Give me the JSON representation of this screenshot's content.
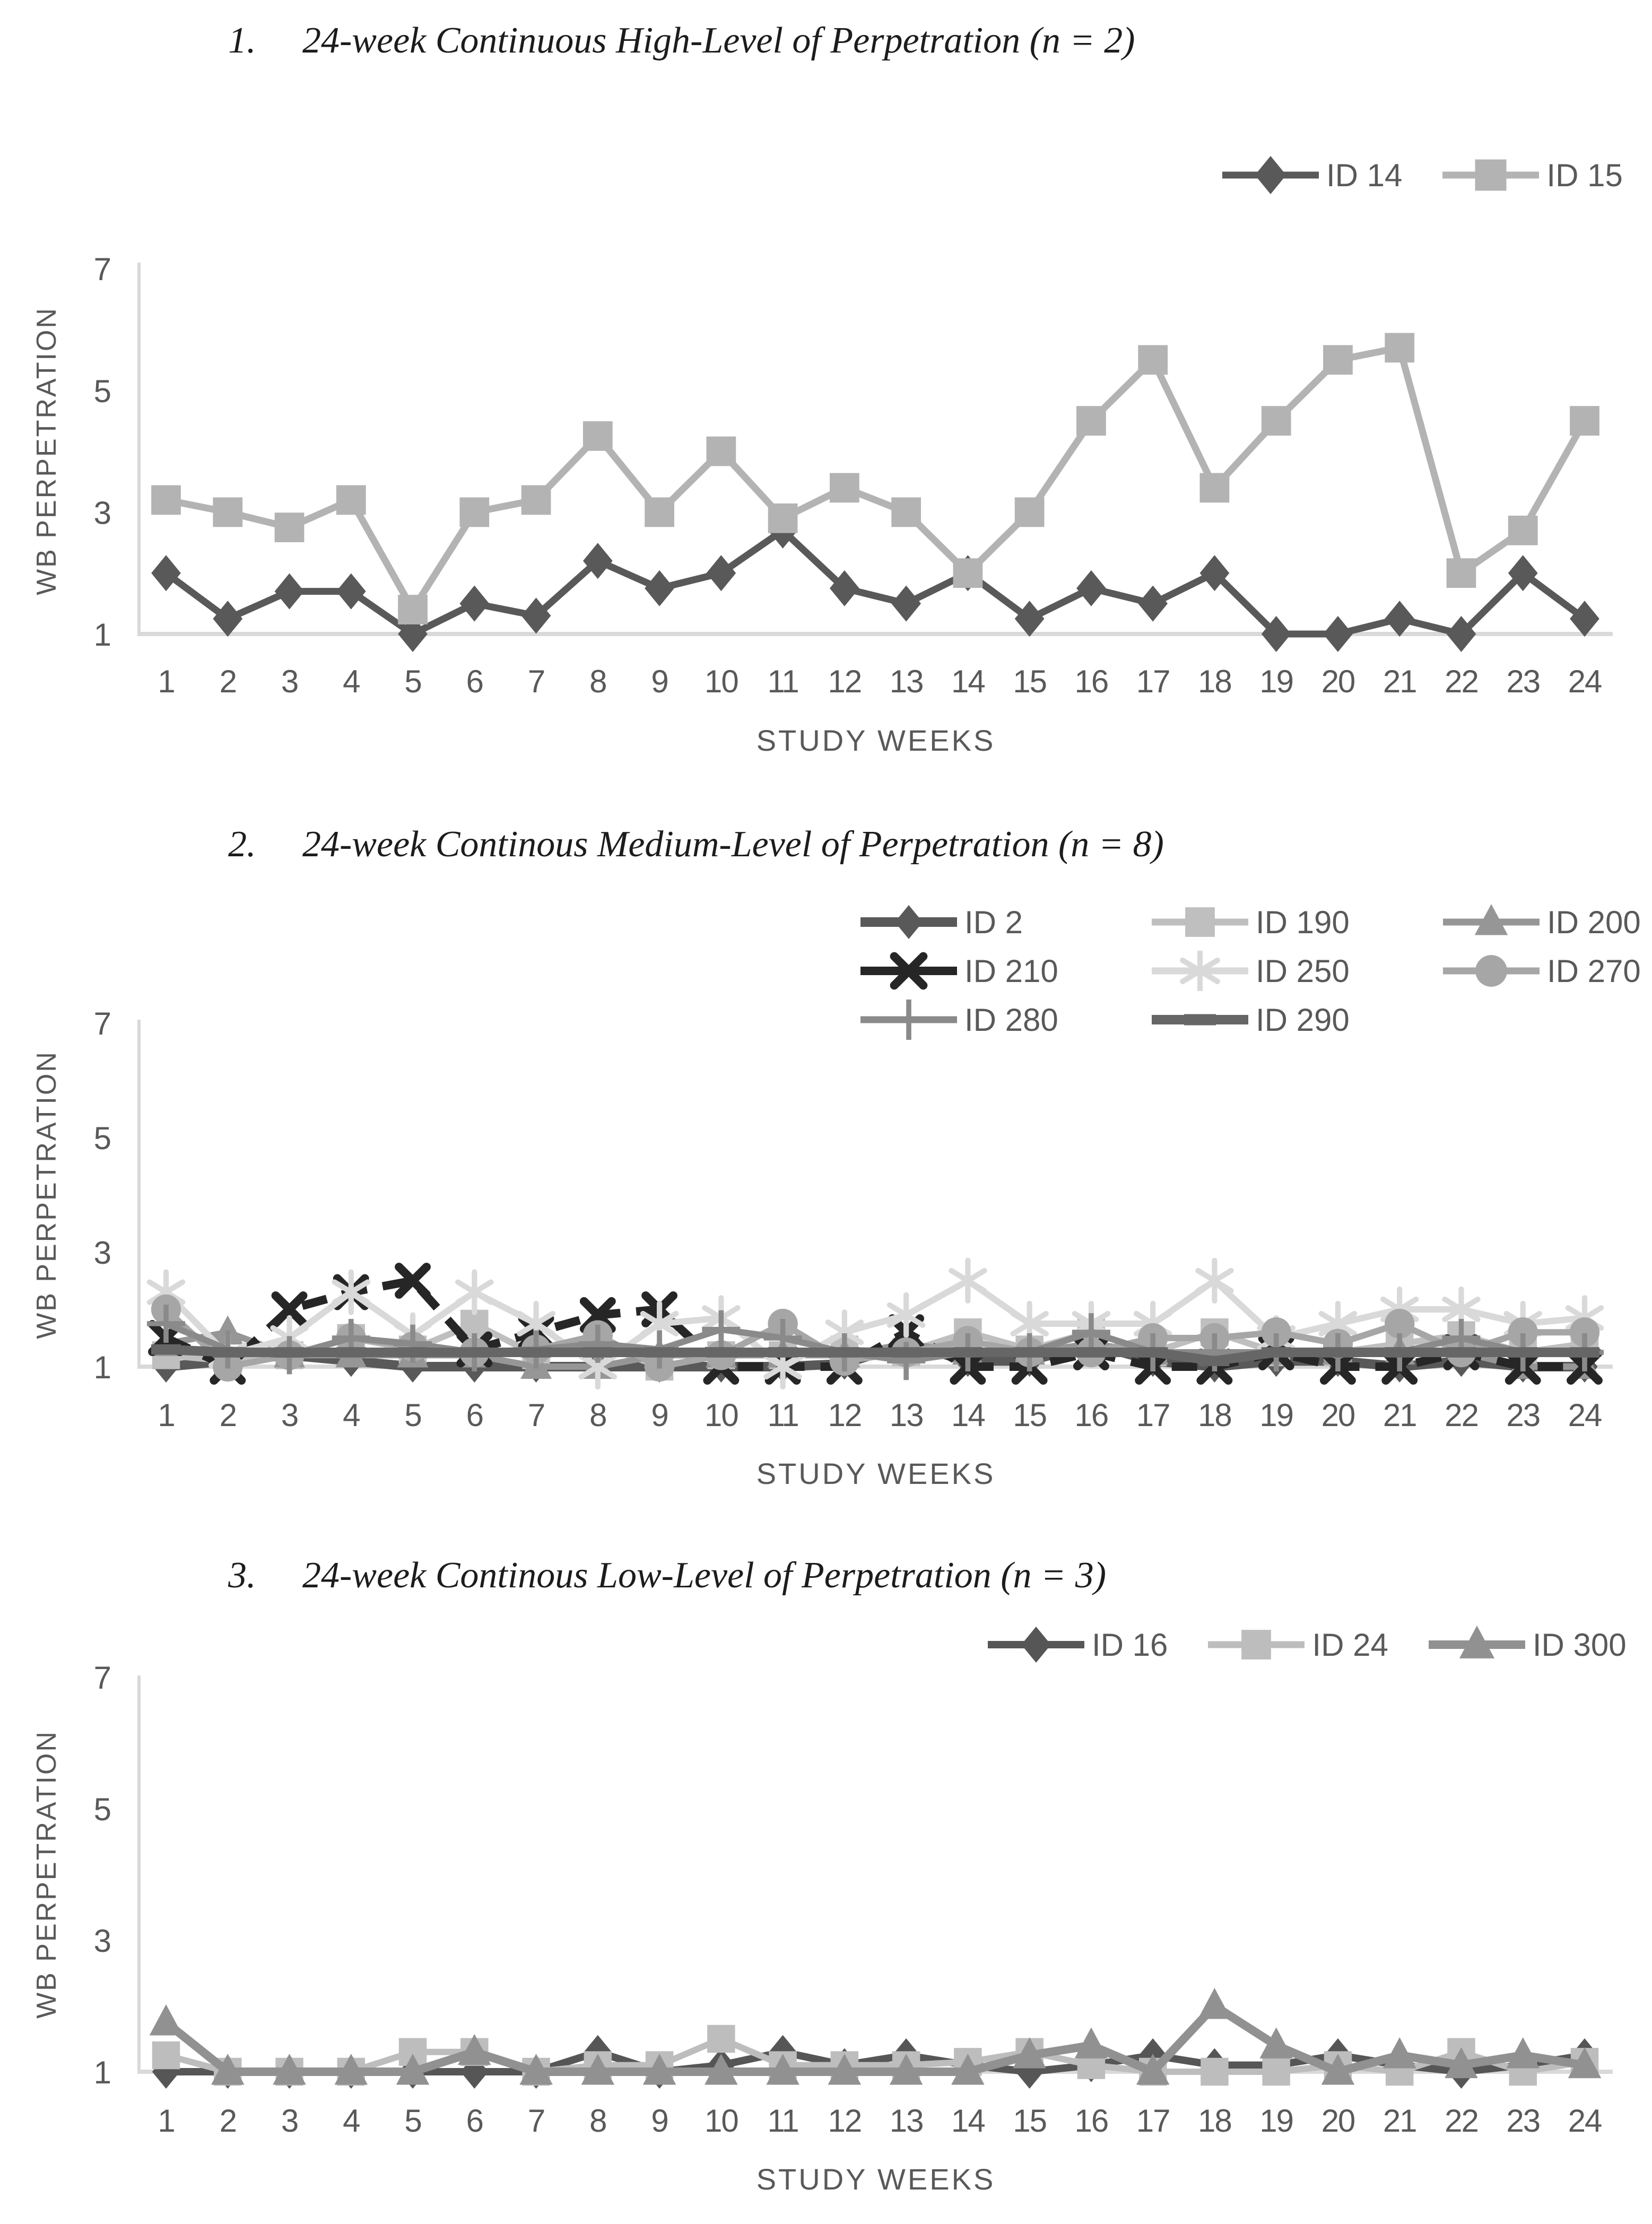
{
  "figure": {
    "background": "#ffffff",
    "axis_color": "#d9d9d9",
    "tick_color": "#595959",
    "title_color": "#1c1c1c"
  },
  "chart_data": [
    {
      "type": "line",
      "number": "1.",
      "title": "24-week Continuous High-Level of Perpetration (n = 2)",
      "ylabel": "WB PERPETRATION",
      "xlabel": "STUDY WEEKS",
      "ylim": [
        1,
        7
      ],
      "y_ticks": [
        7,
        5,
        3,
        1
      ],
      "grid": "off",
      "legend_position": "top-right-row",
      "categories": [
        1,
        2,
        3,
        4,
        5,
        6,
        7,
        8,
        9,
        10,
        11,
        12,
        13,
        14,
        15,
        16,
        17,
        18,
        19,
        20,
        21,
        22,
        23,
        24
      ],
      "series": [
        {
          "name": "ID 14",
          "marker": "diamond",
          "color": "#595959",
          "line_width": 13,
          "marker_size": 34,
          "dash": null,
          "values": [
            2.0,
            1.25,
            1.7,
            1.7,
            1.0,
            1.5,
            1.3,
            2.2,
            1.75,
            2.0,
            2.7,
            1.75,
            1.5,
            2.0,
            1.25,
            1.75,
            1.5,
            2.0,
            1.0,
            1.0,
            1.25,
            1.0,
            2.0,
            1.25
          ]
        },
        {
          "name": "ID 15",
          "marker": "square",
          "color": "#b3b3b3",
          "line_width": 13,
          "marker_size": 34,
          "dash": null,
          "values": [
            3.2,
            3.0,
            2.75,
            3.2,
            1.4,
            3.0,
            3.2,
            4.25,
            3.0,
            4.0,
            2.9,
            3.4,
            3.0,
            2.0,
            3.0,
            4.5,
            5.5,
            3.4,
            4.5,
            5.5,
            5.7,
            2.0,
            2.7,
            4.5
          ]
        }
      ]
    },
    {
      "type": "line",
      "number": "2.",
      "title": "24-week Continous Medium-Level of Perpetration (n = 8)",
      "ylabel": "WB PERPETRATION",
      "xlabel": "STUDY WEEKS",
      "ylim": [
        1,
        7
      ],
      "y_ticks": [
        7,
        5,
        3,
        1
      ],
      "grid": "off",
      "legend_position": "top-right-grid-3col",
      "categories": [
        1,
        2,
        3,
        4,
        5,
        6,
        7,
        8,
        9,
        10,
        11,
        12,
        13,
        14,
        15,
        16,
        17,
        18,
        19,
        20,
        21,
        22,
        23,
        24
      ],
      "series": [
        {
          "name": "ID 2",
          "marker": "diamond",
          "color": "#595959",
          "line_width": 18,
          "marker_size": 30,
          "dash": null,
          "values": [
            1.0,
            1.1,
            1.2,
            1.1,
            1.0,
            1.0,
            1.0,
            1.0,
            1.0,
            1.0,
            1.0,
            1.05,
            1.4,
            1.1,
            1.1,
            1.4,
            1.1,
            1.0,
            1.1,
            1.1,
            1.0,
            1.1,
            1.0,
            1.0
          ]
        },
        {
          "name": "ID 190",
          "marker": "square",
          "color": "#bfbfbf",
          "line_width": 12,
          "marker_size": 32,
          "dash": null,
          "values": [
            1.2,
            1.1,
            1.2,
            1.5,
            1.3,
            1.75,
            1.2,
            1.4,
            1.0,
            1.2,
            1.2,
            1.3,
            1.25,
            1.6,
            1.3,
            1.6,
            1.25,
            1.6,
            1.25,
            1.25,
            1.4,
            1.55,
            1.25,
            1.4
          ]
        },
        {
          "name": "ID 200",
          "marker": "triangle",
          "color": "#969696",
          "line_width": 12,
          "marker_size": 32,
          "dash": null,
          "values": [
            1.4,
            1.6,
            1.2,
            1.2,
            1.2,
            1.2,
            1.0,
            1.0,
            1.2,
            1.2,
            1.2,
            1.2,
            1.4,
            1.25,
            1.25,
            1.4,
            1.25,
            1.25,
            1.25,
            1.25,
            1.25,
            1.25,
            1.0,
            1.0
          ]
        },
        {
          "name": "ID 210",
          "marker": "x",
          "color": "#262626",
          "line_width": 16,
          "marker_size": 36,
          "dash": "48 30",
          "values": [
            1.5,
            1.0,
            2.0,
            2.3,
            2.5,
            1.3,
            1.6,
            1.9,
            2.0,
            1.0,
            1.0,
            1.0,
            1.6,
            1.0,
            1.0,
            1.25,
            1.0,
            1.0,
            1.25,
            1.0,
            1.0,
            1.25,
            1.0,
            1.0
          ]
        },
        {
          "name": "ID 250",
          "marker": "asterisk",
          "color": "#d9d9d9",
          "line_width": 12,
          "marker_size": 38,
          "dash": null,
          "values": [
            2.3,
            1.2,
            1.5,
            2.3,
            1.55,
            2.3,
            1.75,
            1.0,
            1.75,
            1.85,
            1.0,
            1.6,
            1.9,
            2.5,
            1.75,
            1.75,
            1.75,
            2.5,
            1.5,
            1.75,
            2.0,
            2.0,
            1.75,
            1.85
          ]
        },
        {
          "name": "ID 270",
          "marker": "circle",
          "color": "#a6a6a6",
          "line_width": 12,
          "marker_size": 32,
          "dash": null,
          "values": [
            2.0,
            1.0,
            1.2,
            1.5,
            1.35,
            1.25,
            1.3,
            1.55,
            1.0,
            1.2,
            1.75,
            1.1,
            1.25,
            1.45,
            1.25,
            1.25,
            1.5,
            1.5,
            1.6,
            1.4,
            1.75,
            1.25,
            1.6,
            1.6
          ]
        },
        {
          "name": "ID 280",
          "marker": "plus",
          "color": "#8a8a8a",
          "line_width": 12,
          "marker_size": 36,
          "dash": null,
          "values": [
            1.75,
            1.3,
            1.2,
            1.5,
            1.4,
            1.25,
            1.3,
            1.4,
            1.3,
            1.65,
            1.5,
            1.25,
            1.1,
            1.25,
            1.25,
            1.6,
            1.25,
            1.25,
            1.25,
            1.25,
            1.25,
            1.5,
            1.25,
            1.25
          ]
        },
        {
          "name": "ID 290",
          "marker": "dash",
          "color": "#666666",
          "line_width": 18,
          "marker_size": 28,
          "dash": null,
          "values": [
            1.3,
            1.25,
            1.25,
            1.25,
            1.25,
            1.25,
            1.25,
            1.25,
            1.25,
            1.25,
            1.25,
            1.25,
            1.25,
            1.25,
            1.25,
            1.25,
            1.25,
            1.1,
            1.25,
            1.25,
            1.25,
            1.25,
            1.25,
            1.25
          ]
        }
      ]
    },
    {
      "type": "line",
      "number": "3.",
      "title": "24-week Continous Low-Level of Perpetration (n = 3)",
      "ylabel": "WB PERPETRATION",
      "xlabel": "STUDY WEEKS",
      "ylim": [
        1,
        7
      ],
      "y_ticks": [
        7,
        5,
        3,
        1
      ],
      "grid": "off",
      "legend_position": "top-right-row",
      "categories": [
        1,
        2,
        3,
        4,
        5,
        6,
        7,
        8,
        9,
        10,
        11,
        12,
        13,
        14,
        15,
        16,
        17,
        18,
        19,
        20,
        21,
        22,
        23,
        24
      ],
      "series": [
        {
          "name": "ID 16",
          "marker": "diamond",
          "color": "#565656",
          "line_width": 14,
          "marker_size": 32,
          "dash": null,
          "values": [
            1.0,
            1.0,
            1.0,
            1.0,
            1.0,
            1.0,
            1.0,
            1.3,
            1.0,
            1.1,
            1.3,
            1.1,
            1.25,
            1.1,
            1.0,
            1.1,
            1.25,
            1.1,
            1.1,
            1.25,
            1.1,
            1.0,
            1.1,
            1.25
          ]
        },
        {
          "name": "ID 24",
          "marker": "square",
          "color": "#bdbdbd",
          "line_width": 12,
          "marker_size": 32,
          "dash": null,
          "values": [
            1.25,
            1.0,
            1.0,
            1.0,
            1.3,
            1.3,
            1.0,
            1.1,
            1.1,
            1.5,
            1.1,
            1.1,
            1.1,
            1.15,
            1.3,
            1.1,
            1.0,
            1.0,
            1.0,
            1.1,
            1.0,
            1.3,
            1.0,
            1.15
          ]
        },
        {
          "name": "ID 300",
          "marker": "triangle",
          "color": "#919191",
          "line_width": 16,
          "marker_size": 34,
          "dash": null,
          "values": [
            1.75,
            1.0,
            1.0,
            1.0,
            1.0,
            1.3,
            1.0,
            1.0,
            1.0,
            1.0,
            1.0,
            1.0,
            1.0,
            1.0,
            1.25,
            1.4,
            1.0,
            2.0,
            1.4,
            1.0,
            1.25,
            1.1,
            1.25,
            1.1
          ]
        }
      ]
    }
  ]
}
